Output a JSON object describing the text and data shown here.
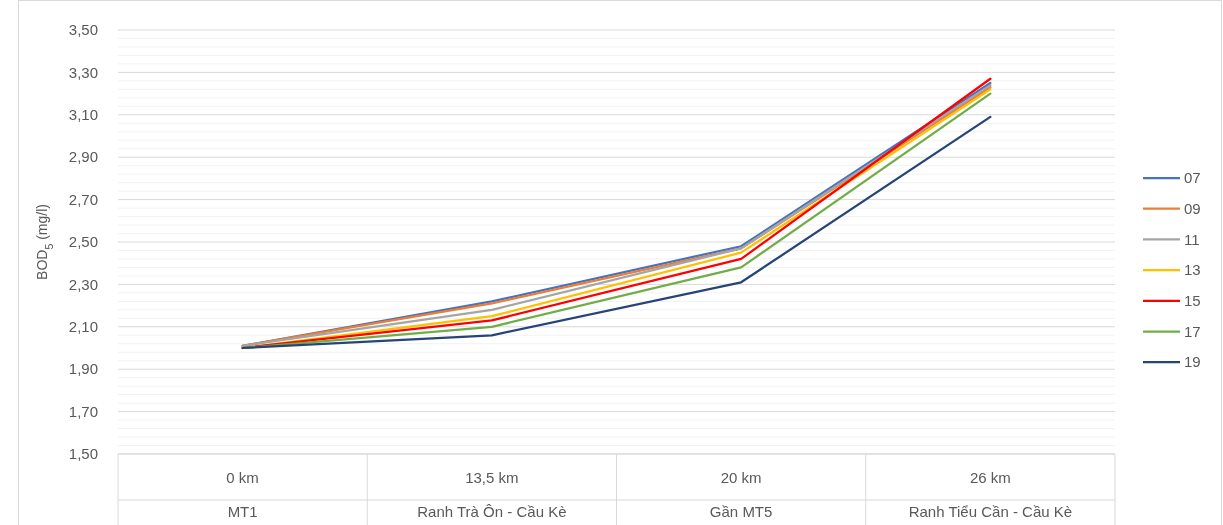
{
  "chart_data": {
    "type": "line",
    "ylabel": "BOD$_{5}$ (mg/l)",
    "categories": [
      "0 km\nMT1",
      "13,5 km\nRanh Trà Ôn - Cầu Kè",
      "20 km\nGần MT5",
      "26 km\nRanh Tiểu Cần - Cầu Kè"
    ],
    "ylim": [
      1.5,
      3.5
    ],
    "yticks": [
      {
        "value": 1.5,
        "label": "1,50"
      },
      {
        "value": 1.7,
        "label": "1,70"
      },
      {
        "value": 1.9,
        "label": "1,90"
      },
      {
        "value": 2.1,
        "label": "2,10"
      },
      {
        "value": 2.3,
        "label": "2,30"
      },
      {
        "value": 2.5,
        "label": "2,50"
      },
      {
        "value": 2.7,
        "label": "2,70"
      },
      {
        "value": 2.9,
        "label": "2,90"
      },
      {
        "value": 3.1,
        "label": "3,10"
      },
      {
        "value": 3.3,
        "label": "3,30"
      },
      {
        "value": 3.5,
        "label": "3,50"
      }
    ],
    "grid": "y",
    "legend": "right",
    "marker": "none",
    "line_style": "solid",
    "series": [
      {
        "name": "07",
        "color": "#4472c4",
        "values": [
          2.01,
          2.22,
          2.48,
          3.25
        ]
      },
      {
        "name": "09",
        "color": "#ed7d31",
        "values": [
          2.01,
          2.21,
          2.47,
          3.23
        ]
      },
      {
        "name": "11",
        "color": "#a5a5a5",
        "values": [
          2.01,
          2.18,
          2.47,
          3.24
        ]
      },
      {
        "name": "13",
        "color": "#ffc000",
        "values": [
          2.0,
          2.15,
          2.45,
          3.22
        ]
      },
      {
        "name": "15",
        "color": "#ff0000",
        "values": [
          2.0,
          2.13,
          2.42,
          3.27
        ]
      },
      {
        "name": "17",
        "color": "#70ad47",
        "values": [
          2.0,
          2.1,
          2.38,
          3.2
        ]
      },
      {
        "name": "19",
        "color": "#264478",
        "values": [
          2.0,
          2.06,
          2.31,
          3.09
        ]
      }
    ]
  }
}
